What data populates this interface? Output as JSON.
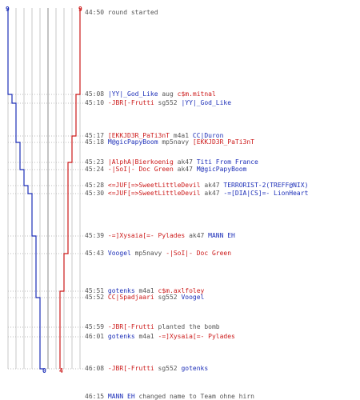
{
  "scores": {
    "blue_top": "9",
    "red_top": "9",
    "blue_bottom": "0",
    "red_bottom": "4"
  },
  "colors": {
    "blue": "#1d2fb8",
    "red": "#cc1a1a",
    "gray": "#555555"
  },
  "events": [
    {
      "time": "44:50",
      "parts": [
        {
          "t": "round started",
          "c": "n"
        }
      ]
    },
    {
      "time": "45:08",
      "parts": [
        {
          "t": "|YY|_God_Like",
          "c": "b"
        },
        {
          "t": " aug ",
          "c": "n"
        },
        {
          "t": "c$m.mitnal",
          "c": "r"
        }
      ]
    },
    {
      "time": "45:10",
      "parts": [
        {
          "t": "-JBR[-Frutti",
          "c": "r"
        },
        {
          "t": " sg552 ",
          "c": "n"
        },
        {
          "t": "|YY|_God_Like",
          "c": "b"
        }
      ]
    },
    {
      "time": "45:17",
      "parts": [
        {
          "t": "[EKKJD3R_PaTi3nT",
          "c": "r"
        },
        {
          "t": " m4a1 ",
          "c": "n"
        },
        {
          "t": "CC|Duron",
          "c": "b"
        }
      ]
    },
    {
      "time": "45:18",
      "parts": [
        {
          "t": "M@gicPapyBoom",
          "c": "b"
        },
        {
          "t": " mp5navy ",
          "c": "n"
        },
        {
          "t": "[EKKJD3R_PaTi3nT",
          "c": "r"
        }
      ]
    },
    {
      "time": "45:23",
      "parts": [
        {
          "t": "|AlphA|Bierkoenig",
          "c": "r"
        },
        {
          "t": " ak47 ",
          "c": "n"
        },
        {
          "t": "Titi From France",
          "c": "b"
        }
      ]
    },
    {
      "time": "45:24",
      "parts": [
        {
          "t": "-|SoI|- Doc Green",
          "c": "r"
        },
        {
          "t": " ak47 ",
          "c": "n"
        },
        {
          "t": "M@gicPapyBoom",
          "c": "b"
        }
      ]
    },
    {
      "time": "45:28",
      "parts": [
        {
          "t": "<=JUF[=>SweetLittleDevil",
          "c": "r"
        },
        {
          "t": " ak47 ",
          "c": "n"
        },
        {
          "t": "TERRORIST-2(TREFF@NIX)",
          "c": "b"
        }
      ]
    },
    {
      "time": "45:30",
      "parts": [
        {
          "t": "<=JUF[=>SweetLittleDevil",
          "c": "r"
        },
        {
          "t": " ak47 ",
          "c": "n"
        },
        {
          "t": "-=[DIA|CS]=- LionHeart",
          "c": "b"
        }
      ]
    },
    {
      "time": "45:39",
      "parts": [
        {
          "t": "-=]Xysaia[=- Pylades",
          "c": "r"
        },
        {
          "t": " ak47 ",
          "c": "n"
        },
        {
          "t": "MANN EH",
          "c": "b"
        }
      ]
    },
    {
      "time": "45:43",
      "parts": [
        {
          "t": "Voogel",
          "c": "b"
        },
        {
          "t": " mp5navy ",
          "c": "n"
        },
        {
          "t": "-|SoI|- Doc Green",
          "c": "r"
        }
      ]
    },
    {
      "time": "45:51",
      "parts": [
        {
          "t": "gotenks",
          "c": "b"
        },
        {
          "t": " m4a1 ",
          "c": "n"
        },
        {
          "t": "c$m.axlfoley",
          "c": "r"
        }
      ]
    },
    {
      "time": "45:52",
      "parts": [
        {
          "t": "CC|Spadjaari",
          "c": "r"
        },
        {
          "t": " sg552 ",
          "c": "n"
        },
        {
          "t": "Voogel",
          "c": "b"
        }
      ]
    },
    {
      "time": "45:59",
      "parts": [
        {
          "t": "-JBR[-Frutti",
          "c": "r"
        },
        {
          "t": " planted the bomb",
          "c": "n"
        }
      ]
    },
    {
      "time": "46:01",
      "parts": [
        {
          "t": "gotenks",
          "c": "b"
        },
        {
          "t": " m4a1 ",
          "c": "n"
        },
        {
          "t": "-=]Xysaia[=- Pylades",
          "c": "r"
        }
      ]
    },
    {
      "time": "46:08",
      "parts": [
        {
          "t": "-JBR[-Frutti",
          "c": "r"
        },
        {
          "t": " sg552 ",
          "c": "n"
        },
        {
          "t": "gotenks",
          "c": "b"
        }
      ]
    },
    {
      "time": "46:15",
      "parts": [
        {
          "t": "MANN EH",
          "c": "b"
        },
        {
          "t": " changed name to Team ohne hirn",
          "c": "n"
        }
      ]
    }
  ]
}
